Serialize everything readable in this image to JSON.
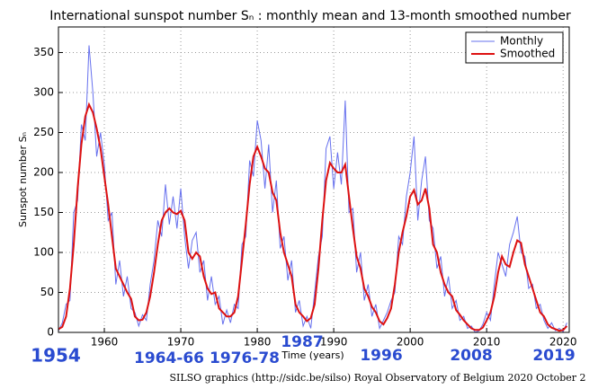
{
  "chart_data": {
    "type": "line",
    "title": "International sunspot number Sₙ : monthly mean and 13-month smoothed number",
    "x_label": "Time (years)",
    "y_label": "Sunspot number Sₙ",
    "credit": "SILSO graphics (http://sidc.be/silso)  Royal Observatory of Belgium  2020 October 2",
    "annotations": [
      "1954",
      "1964-66",
      "1976-78",
      "1987",
      "1996",
      "2008",
      "2019"
    ],
    "xlim": [
      1954,
      2020.8
    ],
    "xticks": [
      1960,
      1970,
      1980,
      1990,
      2000,
      2010,
      2020
    ],
    "ylim": [
      0,
      382
    ],
    "yticks": [
      0,
      50,
      100,
      150,
      200,
      250,
      300,
      350
    ],
    "grid": true,
    "legend": "upper right",
    "x": [
      1954,
      1954.5,
      1955,
      1955.5,
      1956,
      1956.5,
      1957,
      1957.5,
      1958,
      1958.5,
      1959,
      1959.5,
      1960,
      1960.5,
      1961,
      1961.5,
      1962,
      1962.5,
      1963,
      1963.5,
      1964,
      1964.5,
      1965,
      1965.5,
      1966,
      1966.5,
      1967,
      1967.5,
      1968,
      1968.5,
      1969,
      1969.5,
      1970,
      1970.5,
      1971,
      1971.5,
      1972,
      1972.5,
      1973,
      1973.5,
      1974,
      1974.5,
      1975,
      1975.5,
      1976,
      1976.5,
      1977,
      1977.5,
      1978,
      1978.5,
      1979,
      1979.5,
      1980,
      1980.5,
      1981,
      1981.5,
      1982,
      1982.5,
      1983,
      1983.5,
      1984,
      1984.5,
      1985,
      1985.5,
      1986,
      1986.5,
      1987,
      1987.5,
      1988,
      1988.5,
      1989,
      1989.5,
      1990,
      1990.5,
      1991,
      1991.5,
      1992,
      1992.5,
      1993,
      1993.5,
      1994,
      1994.5,
      1995,
      1995.5,
      1996,
      1996.5,
      1997,
      1997.5,
      1998,
      1998.5,
      1999,
      1999.5,
      2000,
      2000.5,
      2001,
      2001.5,
      2002,
      2002.5,
      2003,
      2003.5,
      2004,
      2004.5,
      2005,
      2005.5,
      2006,
      2006.5,
      2007,
      2007.5,
      2008,
      2008.5,
      2009,
      2009.5,
      2010,
      2010.5,
      2011,
      2011.5,
      2012,
      2012.5,
      2013,
      2013.5,
      2014,
      2014.5,
      2015,
      2015.5,
      2016,
      2016.5,
      2017,
      2017.5,
      2018,
      2018.5,
      2019,
      2019.5,
      2020,
      2020.5
    ],
    "series": [
      {
        "name": "Monthly",
        "color": "#6670ee",
        "width": 1,
        "values": [
          2,
          12,
          35,
          40,
          150,
          165,
          260,
          240,
          359,
          300,
          220,
          250,
          210,
          140,
          150,
          60,
          90,
          45,
          70,
          30,
          25,
          8,
          22,
          15,
          60,
          90,
          140,
          120,
          185,
          135,
          170,
          130,
          180,
          120,
          80,
          115,
          125,
          75,
          90,
          40,
          70,
          35,
          45,
          10,
          28,
          12,
          35,
          30,
          110,
          120,
          215,
          195,
          265,
          240,
          180,
          235,
          150,
          190,
          105,
          120,
          65,
          90,
          25,
          40,
          8,
          20,
          5,
          50,
          95,
          120,
          230,
          245,
          180,
          225,
          185,
          290,
          150,
          155,
          75,
          100,
          40,
          60,
          20,
          35,
          5,
          15,
          25,
          40,
          50,
          120,
          110,
          170,
          200,
          245,
          140,
          190,
          220,
          140,
          130,
          80,
          95,
          45,
          70,
          30,
          40,
          15,
          20,
          5,
          8,
          0,
          2,
          10,
          25,
          15,
          60,
          100,
          85,
          70,
          110,
          125,
          145,
          100,
          95,
          55,
          60,
          30,
          35,
          15,
          5,
          12,
          2,
          5,
          1,
          12
        ]
      },
      {
        "name": "Smoothed",
        "color": "#dd1111",
        "width": 2,
        "values": [
          4,
          7,
          20,
          55,
          110,
          180,
          235,
          270,
          285,
          275,
          255,
          230,
          195,
          160,
          120,
          80,
          70,
          60,
          50,
          42,
          20,
          15,
          16,
          25,
          45,
          75,
          110,
          140,
          150,
          155,
          150,
          148,
          152,
          140,
          100,
          92,
          100,
          95,
          70,
          55,
          48,
          50,
          30,
          25,
          20,
          20,
          25,
          45,
          90,
          135,
          185,
          220,
          232,
          220,
          205,
          200,
          175,
          165,
          125,
          100,
          85,
          70,
          35,
          25,
          20,
          14,
          18,
          35,
          80,
          140,
          190,
          212,
          205,
          200,
          200,
          210,
          170,
          130,
          95,
          80,
          55,
          45,
          32,
          25,
          14,
          10,
          18,
          30,
          60,
          100,
          125,
          145,
          170,
          178,
          160,
          165,
          180,
          155,
          110,
          100,
          75,
          60,
          50,
          45,
          28,
          22,
          15,
          10,
          5,
          3,
          3,
          6,
          15,
          25,
          45,
          75,
          95,
          85,
          82,
          100,
          115,
          112,
          85,
          70,
          55,
          40,
          25,
          20,
          10,
          6,
          4,
          2,
          3,
          8
        ]
      }
    ]
  }
}
